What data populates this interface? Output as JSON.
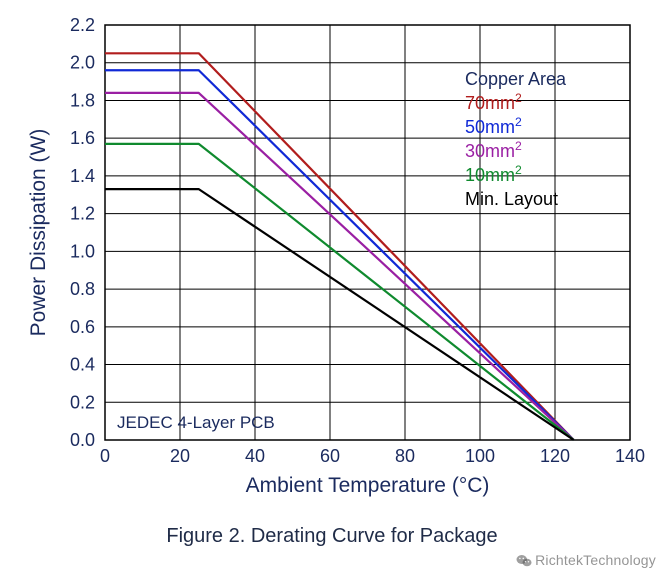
{
  "chart": {
    "type": "line",
    "background_color": "#ffffff",
    "plot_border_color": "#000000",
    "grid_color": "#000000",
    "grid_line_width": 1,
    "font_family": "Arial",
    "axis_label_color": "#1a2a5e",
    "tick_label_color": "#1a2a5e",
    "tick_fontsize": 18,
    "axis_label_fontsize": 21,
    "x_axis": {
      "label": "Ambient Temperature (°C)",
      "min": 0,
      "max": 140,
      "tick_step": 20,
      "ticks": [
        0,
        20,
        40,
        60,
        80,
        100,
        120,
        140
      ]
    },
    "y_axis": {
      "label": "Power Dissipation (W)",
      "min": 0.0,
      "max": 2.2,
      "tick_step": 0.2,
      "ticks": [
        0.0,
        0.2,
        0.4,
        0.6,
        0.8,
        1.0,
        1.2,
        1.4,
        1.6,
        1.8,
        2.0,
        2.2
      ],
      "decimals": 1
    },
    "series_line_width": 2.2,
    "convergence_x": 125,
    "series": [
      {
        "id": "cu70",
        "label": "70mm",
        "color": "#b11d1d",
        "points": [
          [
            0,
            2.05
          ],
          [
            25,
            2.05
          ],
          [
            125,
            0.0
          ]
        ]
      },
      {
        "id": "cu50",
        "label": "50mm",
        "color": "#1029d6",
        "points": [
          [
            0,
            1.96
          ],
          [
            25,
            1.96
          ],
          [
            125,
            0.0
          ]
        ]
      },
      {
        "id": "cu30",
        "label": "30mm",
        "color": "#9a1fa3",
        "points": [
          [
            0,
            1.84
          ],
          [
            25,
            1.84
          ],
          [
            125,
            0.0
          ]
        ]
      },
      {
        "id": "cu10",
        "label": "10mm",
        "color": "#0f8a2e",
        "points": [
          [
            0,
            1.57
          ],
          [
            25,
            1.57
          ],
          [
            125,
            0.0
          ]
        ]
      },
      {
        "id": "minlayout",
        "label": "Min. Layout",
        "color": "#000000",
        "points": [
          [
            0,
            1.33
          ],
          [
            25,
            1.33
          ],
          [
            125,
            0.0
          ]
        ]
      }
    ],
    "legend": {
      "title": "Copper Area",
      "title_color": "#1a2a5e",
      "position": "inside-top-right",
      "fontsize": 18
    },
    "annotation": {
      "text": "JEDEC 4-Layer PCB",
      "position": "inside-bottom-left",
      "color": "#1a2a5e",
      "fontsize": 17
    }
  },
  "caption": "Figure 2. Derating Curve for Package",
  "watermark": "RichtekTechnology"
}
